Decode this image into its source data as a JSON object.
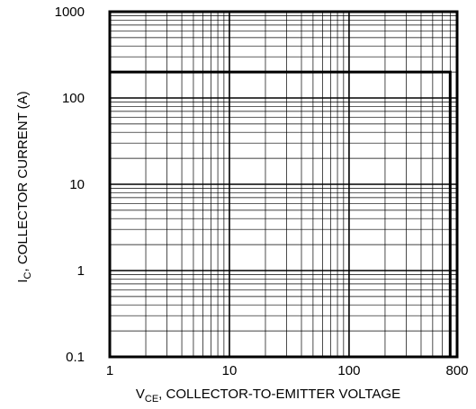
{
  "chart_data": {
    "type": "line",
    "title": "",
    "xlabel": {
      "prefix": "V",
      "sub": "CE",
      "rest": ", COLLECTOR-TO-EMITTER VOLTAGE"
    },
    "ylabel": {
      "prefix": "I",
      "sub": "C",
      "rest": ", COLLECTOR CURRENT (A)"
    },
    "x_scale": "log",
    "y_scale": "log",
    "xlim": [
      1,
      800
    ],
    "ylim": [
      0.1,
      1000
    ],
    "grid": true,
    "x_ticks": [
      {
        "value": 1,
        "label": "1"
      },
      {
        "value": 10,
        "label": "10"
      },
      {
        "value": 100,
        "label": "100"
      },
      {
        "value": 800,
        "label": "800"
      }
    ],
    "y_ticks": [
      {
        "value": 0.1,
        "label": "0.1"
      },
      {
        "value": 1,
        "label": "1"
      },
      {
        "value": 10,
        "label": "10"
      },
      {
        "value": 100,
        "label": "100"
      },
      {
        "value": 1000,
        "label": "1000"
      }
    ],
    "series": [
      {
        "x": [
          1,
          700,
          700
        ],
        "y": [
          200,
          200,
          0.1
        ],
        "color": "#000000"
      }
    ]
  }
}
